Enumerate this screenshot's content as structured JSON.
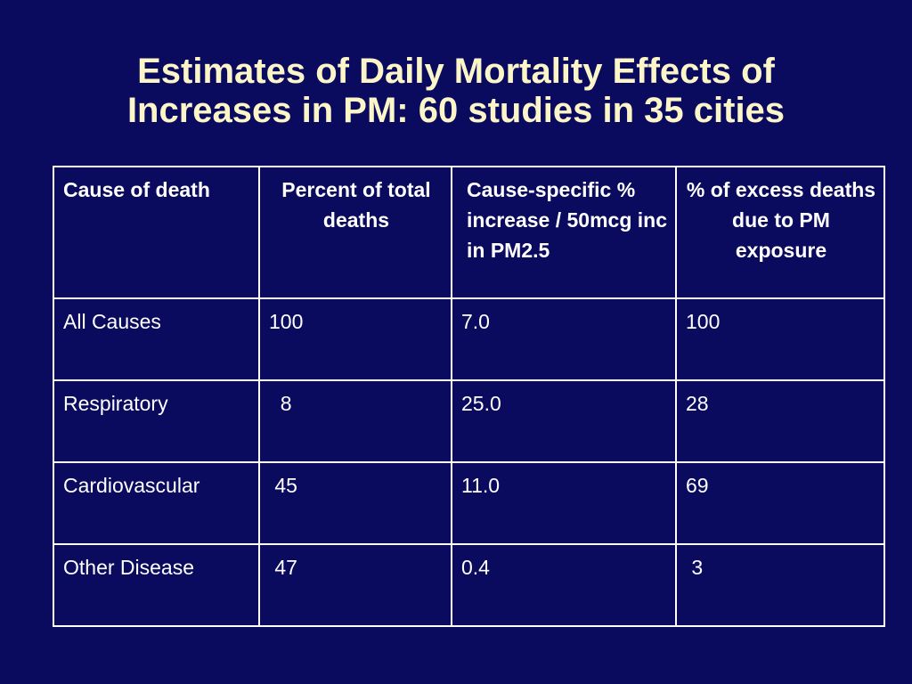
{
  "slide": {
    "title_line1": "Estimates of Daily Mortality Effects of",
    "title_line2": "Increases in PM: 60 studies in 35 cities"
  },
  "table": {
    "headers": [
      "Cause of death",
      "Percent of total deaths",
      "Cause-specific % increase / 50mcg inc in PM2.5",
      "% of excess deaths due to PM exposure"
    ],
    "rows": [
      [
        "All Causes",
        "100",
        "7.0",
        "100"
      ],
      [
        "Respiratory",
        "  8",
        "25.0",
        "28"
      ],
      [
        "Cardiovascular",
        " 45",
        "11.0",
        "69"
      ],
      [
        "Other Disease",
        " 47",
        "0.4",
        " 3"
      ]
    ]
  }
}
